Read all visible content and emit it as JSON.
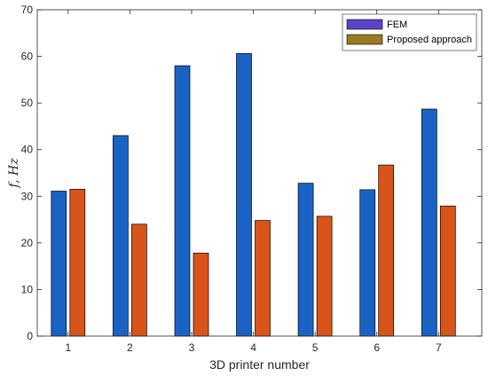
{
  "chart_data": {
    "type": "bar",
    "categories": [
      "1",
      "2",
      "3",
      "4",
      "5",
      "6",
      "7"
    ],
    "series": [
      {
        "name": "FEM",
        "values": [
          31.1,
          43.0,
          58.0,
          60.6,
          32.8,
          31.4,
          48.7
        ],
        "color": "#1a63c4",
        "legend_color": "#5b43c6"
      },
      {
        "name": "Proposed approach",
        "values": [
          31.5,
          24.0,
          17.8,
          24.8,
          25.7,
          36.7,
          27.9
        ],
        "color": "#d9541a",
        "legend_color": "#9b7a22"
      }
    ],
    "xlabel": "3D printer number",
    "ylabel": "f, Hz",
    "ylim": [
      0,
      70
    ],
    "yticks": [
      "0",
      "10",
      "20",
      "30",
      "40",
      "50",
      "60",
      "70"
    ],
    "grid": false,
    "legend_position": "top-right"
  }
}
